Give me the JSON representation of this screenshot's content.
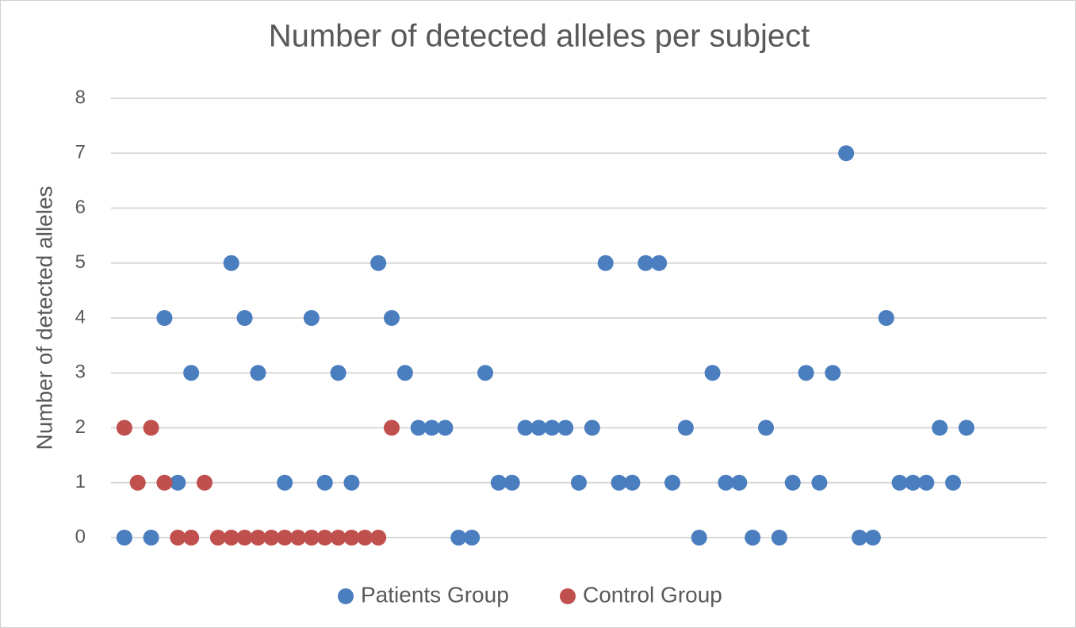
{
  "chart_data": {
    "type": "scatter",
    "title": "Number of detected alleles per subject",
    "y_label": "Number of detected alleles",
    "xlim": [
      0,
      70
    ],
    "ylim": [
      0,
      8
    ],
    "yticks": [
      0,
      1,
      2,
      3,
      4,
      5,
      6,
      7,
      8
    ],
    "grid": true,
    "legend": "bottom",
    "series": [
      {
        "name": "Patients Group",
        "color": "#4a7ebf",
        "x": [
          1,
          3,
          4,
          5,
          6,
          9,
          10,
          11,
          13,
          15,
          16,
          17,
          18,
          20,
          21,
          22,
          23,
          24,
          25,
          26,
          27,
          28,
          29,
          30,
          31,
          32,
          33,
          34,
          35,
          36,
          37,
          38,
          39,
          40,
          41,
          42,
          43,
          44,
          45,
          46,
          47,
          48,
          49,
          50,
          51,
          52,
          53,
          54,
          55,
          56,
          57,
          58,
          59,
          60,
          61,
          62,
          63,
          64
        ],
        "values": [
          0,
          0,
          4,
          1,
          3,
          5,
          4,
          3,
          1,
          4,
          1,
          3,
          1,
          5,
          4,
          3,
          2,
          2,
          2,
          0,
          0,
          3,
          1,
          1,
          2,
          2,
          2,
          2,
          1,
          2,
          5,
          1,
          1,
          5,
          5,
          1,
          2,
          0,
          3,
          1,
          1,
          0,
          2,
          0,
          1,
          3,
          1,
          3,
          7,
          0,
          0,
          4,
          1,
          1,
          1,
          2,
          1,
          2
        ]
      },
      {
        "name": "Control Group",
        "color": "#c0504d",
        "x": [
          1,
          2,
          3,
          4,
          5,
          6,
          7,
          8,
          9,
          10,
          11,
          12,
          13,
          14,
          15,
          16,
          17,
          18,
          19,
          20,
          21
        ],
        "values": [
          2,
          1,
          2,
          1,
          0,
          0,
          1,
          0,
          0,
          0,
          0,
          0,
          0,
          0,
          0,
          0,
          0,
          0,
          0,
          0,
          2
        ]
      }
    ]
  }
}
